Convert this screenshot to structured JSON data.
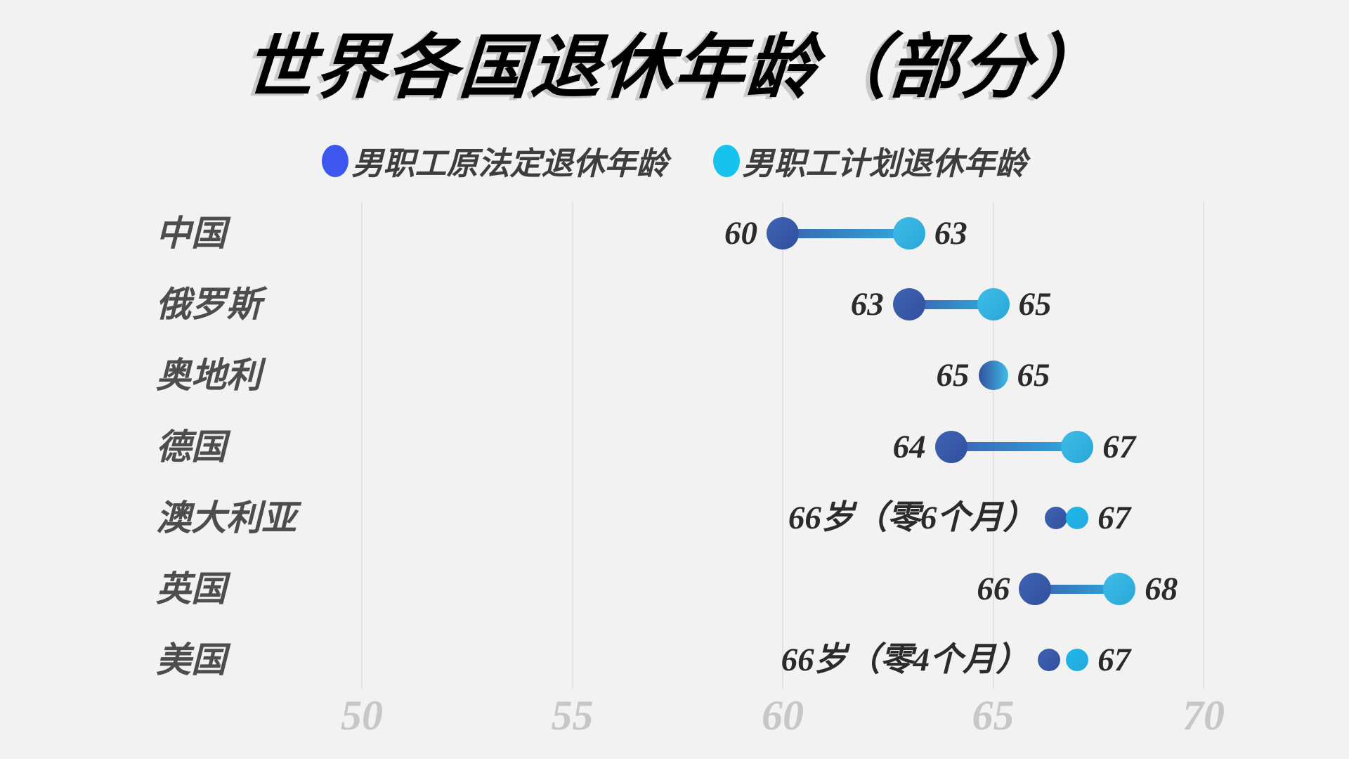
{
  "title": "世界各国退休年龄（部分）",
  "legend": {
    "items": [
      {
        "label": "男职工原法定退休年龄",
        "series": "original"
      },
      {
        "label": "男职工计划退休年龄",
        "series": "planned"
      }
    ]
  },
  "colors": {
    "background": "#F2F2F2",
    "grid": "#E2E2E2",
    "axis_tick_text": "#C7C7C7",
    "category_text": "#4D4D4D",
    "value_text": "#2B2B2B",
    "title_text": "#000000",
    "legend_original": "#3D57EE",
    "legend_planned": "#16C3EF",
    "dot_original_dark": "#31509E",
    "dot_original_light": "#3E63B2",
    "dot_planned_dark": "#28A7D8",
    "dot_planned_light": "#3FBCE8",
    "small_dot_planned": "#1BB9EE",
    "line_start": "#3A63B1",
    "line_end": "#2FA9DC"
  },
  "chart_data": {
    "type": "dumbbell",
    "title": "世界各国退休年龄（部分）",
    "categories": [
      "中国",
      "俄罗斯",
      "奥地利",
      "德国",
      "澳大利亚",
      "英国",
      "美国"
    ],
    "series": [
      {
        "name": "男职工原法定退休年龄",
        "values": [
          60,
          63,
          65,
          64,
          66.5,
          66,
          66.33
        ],
        "labels": [
          "60",
          "63",
          "65",
          "64",
          "66岁（零6个月）",
          "66",
          "66岁（零4个月）"
        ]
      },
      {
        "name": "男职工计划退休年龄",
        "values": [
          63,
          65,
          65,
          67,
          67,
          68,
          67
        ],
        "labels": [
          "63",
          "65",
          "65",
          "67",
          "67",
          "68",
          "67"
        ]
      }
    ],
    "xlabel": "",
    "ylabel": "",
    "axis": {
      "ticks": [
        50,
        55,
        60,
        65,
        70
      ],
      "xlim": [
        50,
        70
      ],
      "grid": true
    },
    "legend_position": "top"
  }
}
